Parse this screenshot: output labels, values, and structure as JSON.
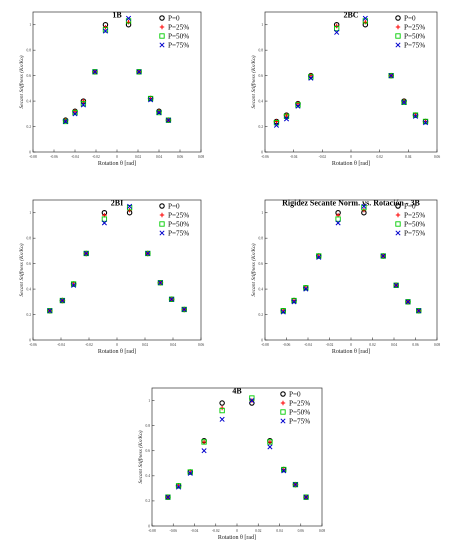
{
  "chart_data": [
    {
      "type": "scatter",
      "title": "1B",
      "xlabel": "Rotation θ [rad]",
      "ylabel": "Secant Stiffness (Ks/Ko)",
      "xlim": [
        -0.08,
        0.08
      ],
      "ylim": [
        0,
        1.1
      ],
      "x_ticks": [
        "-0.08",
        "-0.06",
        "-0.04",
        "-0.02",
        "0",
        "0.02",
        "0.04",
        "0.06",
        "0.08"
      ],
      "y_ticks": [
        "0",
        "0.2",
        "0.4",
        "0.6",
        "0.8",
        "1"
      ],
      "series": [
        {
          "name": "P=0",
          "x": [
            -0.049,
            -0.04,
            -0.032,
            -0.021,
            -0.011,
            0.011,
            0.021,
            0.032,
            0.04,
            0.049
          ],
          "y": [
            0.25,
            0.32,
            0.4,
            0.63,
            1.0,
            1.0,
            0.63,
            0.42,
            0.32,
            0.25
          ]
        },
        {
          "name": "P=25%",
          "x": [
            -0.049,
            -0.04,
            -0.032,
            -0.021,
            -0.011,
            0.011,
            0.021,
            0.032,
            0.04,
            0.049
          ],
          "y": [
            0.25,
            0.32,
            0.4,
            0.63,
            0.98,
            1.02,
            0.63,
            0.42,
            0.32,
            0.25
          ]
        },
        {
          "name": "P=50%",
          "x": [
            -0.049,
            -0.04,
            -0.032,
            -0.021,
            -0.011,
            0.011,
            0.021,
            0.032,
            0.04,
            0.049
          ],
          "y": [
            0.24,
            0.31,
            0.38,
            0.63,
            0.96,
            1.03,
            0.63,
            0.42,
            0.31,
            0.25
          ]
        },
        {
          "name": "P=75%",
          "x": [
            -0.049,
            -0.04,
            -0.032,
            -0.021,
            -0.011,
            0.011,
            0.021,
            0.032,
            0.04,
            0.049
          ],
          "y": [
            0.24,
            0.3,
            0.37,
            0.63,
            0.95,
            1.05,
            0.63,
            0.41,
            0.31,
            0.25
          ]
        }
      ],
      "legend": "top-right"
    },
    {
      "type": "scatter",
      "title": "2BC",
      "xlabel": "Rotation θ [rad]",
      "ylabel": "Secant Stiffness (Ks/Ko)",
      "xlim": [
        -0.06,
        0.06
      ],
      "ylim": [
        0,
        1.1
      ],
      "x_ticks": [
        "-0.06",
        "-0.04",
        "-0.02",
        "0",
        "0.02",
        "0.04",
        "0.06"
      ],
      "y_ticks": [
        "0",
        "0.2",
        "0.4",
        "0.6",
        "0.8",
        "1"
      ],
      "series": [
        {
          "name": "P=0",
          "x": [
            -0.052,
            -0.045,
            -0.037,
            -0.028,
            -0.01,
            0.01,
            0.028,
            0.037,
            0.045,
            0.052
          ],
          "y": [
            0.24,
            0.29,
            0.38,
            0.6,
            1.0,
            1.0,
            0.6,
            0.4,
            0.29,
            0.24
          ]
        },
        {
          "name": "P=25%",
          "x": [
            -0.052,
            -0.045,
            -0.037,
            -0.028,
            -0.01,
            0.01,
            0.028,
            0.037,
            0.045,
            0.052
          ],
          "y": [
            0.24,
            0.29,
            0.38,
            0.6,
            0.99,
            1.02,
            0.6,
            0.4,
            0.29,
            0.24
          ]
        },
        {
          "name": "P=50%",
          "x": [
            -0.052,
            -0.045,
            -0.037,
            -0.028,
            -0.01,
            0.01,
            0.028,
            0.037,
            0.045,
            0.052
          ],
          "y": [
            0.23,
            0.28,
            0.37,
            0.59,
            0.97,
            1.03,
            0.6,
            0.39,
            0.29,
            0.24
          ]
        },
        {
          "name": "P=75%",
          "x": [
            -0.052,
            -0.045,
            -0.037,
            -0.028,
            -0.01,
            0.01,
            0.028,
            0.037,
            0.045,
            0.052
          ],
          "y": [
            0.21,
            0.26,
            0.36,
            0.58,
            0.94,
            1.05,
            0.6,
            0.39,
            0.28,
            0.23
          ]
        }
      ],
      "legend": "top-right"
    },
    {
      "type": "scatter",
      "title": "2BI",
      "xlabel": "Rotation θ [rad]",
      "ylabel": "Secant Stiffness (Ks/Ko)",
      "xlim": [
        -0.06,
        0.06
      ],
      "ylim": [
        0,
        1.1
      ],
      "x_ticks": [
        "-0.06",
        "-0.04",
        "-0.02",
        "0",
        "0.02",
        "0.04",
        "0.06"
      ],
      "y_ticks": [
        "0",
        "0.2",
        "0.4",
        "0.6",
        "0.8",
        "1"
      ],
      "series": [
        {
          "name": "P=0",
          "x": [
            -0.048,
            -0.039,
            -0.031,
            -0.022,
            -0.009,
            0.009,
            0.022,
            0.031,
            0.039,
            0.048
          ],
          "y": [
            0.23,
            0.31,
            0.44,
            0.68,
            1.0,
            1.0,
            0.68,
            0.45,
            0.32,
            0.24
          ]
        },
        {
          "name": "P=25%",
          "x": [
            -0.048,
            -0.039,
            -0.031,
            -0.022,
            -0.009,
            0.009,
            0.022,
            0.031,
            0.039,
            0.048
          ],
          "y": [
            0.23,
            0.31,
            0.44,
            0.68,
            0.98,
            1.02,
            0.68,
            0.45,
            0.32,
            0.24
          ]
        },
        {
          "name": "P=50%",
          "x": [
            -0.048,
            -0.039,
            -0.031,
            -0.022,
            -0.009,
            0.009,
            0.022,
            0.031,
            0.039,
            0.048
          ],
          "y": [
            0.23,
            0.31,
            0.44,
            0.68,
            0.95,
            1.04,
            0.68,
            0.45,
            0.32,
            0.24
          ]
        },
        {
          "name": "P=75%",
          "x": [
            -0.048,
            -0.039,
            -0.031,
            -0.022,
            -0.009,
            0.009,
            0.022,
            0.031,
            0.039,
            0.048
          ],
          "y": [
            0.23,
            0.31,
            0.43,
            0.68,
            0.92,
            1.05,
            0.68,
            0.45,
            0.32,
            0.24
          ]
        }
      ],
      "legend": "top-right"
    },
    {
      "type": "scatter",
      "title": "Rigidez Secante Norm. vs. Rotación - 3B",
      "xlabel": "Rotation θ [rad]",
      "ylabel": "Secant Stiffness (Ks/Ko)",
      "xlim": [
        -0.08,
        0.08
      ],
      "ylim": [
        0,
        1.1
      ],
      "x_ticks": [
        "-0.08",
        "-0.06",
        "-0.04",
        "-0.02",
        "0",
        "0.02",
        "0.04",
        "0.06",
        "0.08"
      ],
      "y_ticks": [
        "0",
        "0.2",
        "0.4",
        "0.6",
        "0.8",
        "1"
      ],
      "series": [
        {
          "name": "P=0",
          "x": [
            -0.063,
            -0.053,
            -0.042,
            -0.03,
            -0.012,
            0.012,
            0.03,
            0.042,
            0.053,
            0.063
          ],
          "y": [
            0.23,
            0.31,
            0.41,
            0.66,
            1.0,
            1.0,
            0.66,
            0.43,
            0.3,
            0.23
          ]
        },
        {
          "name": "P=25%",
          "x": [
            -0.063,
            -0.053,
            -0.042,
            -0.03,
            -0.012,
            0.012,
            0.03,
            0.042,
            0.053,
            0.063
          ],
          "y": [
            0.23,
            0.31,
            0.41,
            0.66,
            0.98,
            1.02,
            0.66,
            0.43,
            0.3,
            0.23
          ]
        },
        {
          "name": "P=50%",
          "x": [
            -0.063,
            -0.053,
            -0.042,
            -0.03,
            -0.012,
            0.012,
            0.03,
            0.042,
            0.053,
            0.063
          ],
          "y": [
            0.23,
            0.31,
            0.41,
            0.66,
            0.95,
            1.04,
            0.66,
            0.43,
            0.3,
            0.23
          ]
        },
        {
          "name": "P=75%",
          "x": [
            -0.063,
            -0.053,
            -0.042,
            -0.03,
            -0.012,
            0.012,
            0.03,
            0.042,
            0.053,
            0.063
          ],
          "y": [
            0.22,
            0.3,
            0.4,
            0.65,
            0.92,
            1.05,
            0.66,
            0.43,
            0.3,
            0.23
          ]
        }
      ],
      "legend": "top-right"
    },
    {
      "type": "scatter",
      "title": "4B",
      "xlabel": "Rotation θ [rad]",
      "ylabel": "Secant Stiffness (Ks/Ko)",
      "xlim": [
        -0.08,
        0.08
      ],
      "ylim": [
        0,
        1.1
      ],
      "x_ticks": [
        "-0.08",
        "-0.06",
        "-0.04",
        "-0.02",
        "0",
        "0.02",
        "0.04",
        "0.06",
        "0.08"
      ],
      "y_ticks": [
        "0",
        "0.2",
        "0.4",
        "0.6",
        "0.8",
        "1"
      ],
      "series": [
        {
          "name": "P=0",
          "x": [
            -0.065,
            -0.055,
            -0.044,
            -0.031,
            -0.014,
            0.014,
            0.031,
            0.044,
            0.055,
            0.065
          ],
          "y": [
            0.23,
            0.32,
            0.43,
            0.68,
            0.98,
            0.98,
            0.68,
            0.45,
            0.33,
            0.23
          ]
        },
        {
          "name": "P=25%",
          "x": [
            -0.065,
            -0.055,
            -0.044,
            -0.031,
            -0.014,
            0.014,
            0.031,
            0.044,
            0.055,
            0.065
          ],
          "y": [
            0.23,
            0.32,
            0.43,
            0.67,
            0.94,
            1.0,
            0.67,
            0.45,
            0.33,
            0.23
          ]
        },
        {
          "name": "P=50%",
          "x": [
            -0.065,
            -0.055,
            -0.044,
            -0.031,
            -0.014,
            0.014,
            0.031,
            0.044,
            0.055,
            0.065
          ],
          "y": [
            0.23,
            0.32,
            0.43,
            0.67,
            0.92,
            1.02,
            0.67,
            0.45,
            0.33,
            0.23
          ]
        },
        {
          "name": "P=75%",
          "x": [
            -0.065,
            -0.055,
            -0.044,
            -0.031,
            -0.014,
            0.014,
            0.031,
            0.044,
            0.055,
            0.065
          ],
          "y": [
            0.23,
            0.31,
            0.42,
            0.6,
            0.85,
            1.0,
            0.63,
            0.44,
            0.33,
            0.23
          ]
        }
      ],
      "legend": "top-right"
    }
  ],
  "marker_styles": [
    {
      "series": "P=0",
      "shape": "circle",
      "color": "#000000"
    },
    {
      "series": "P=25%",
      "shape": "plus",
      "color": "#ff0000"
    },
    {
      "series": "P=50%",
      "shape": "square",
      "color": "#00cc00"
    },
    {
      "series": "P=75%",
      "shape": "cross",
      "color": "#0000cc"
    }
  ]
}
